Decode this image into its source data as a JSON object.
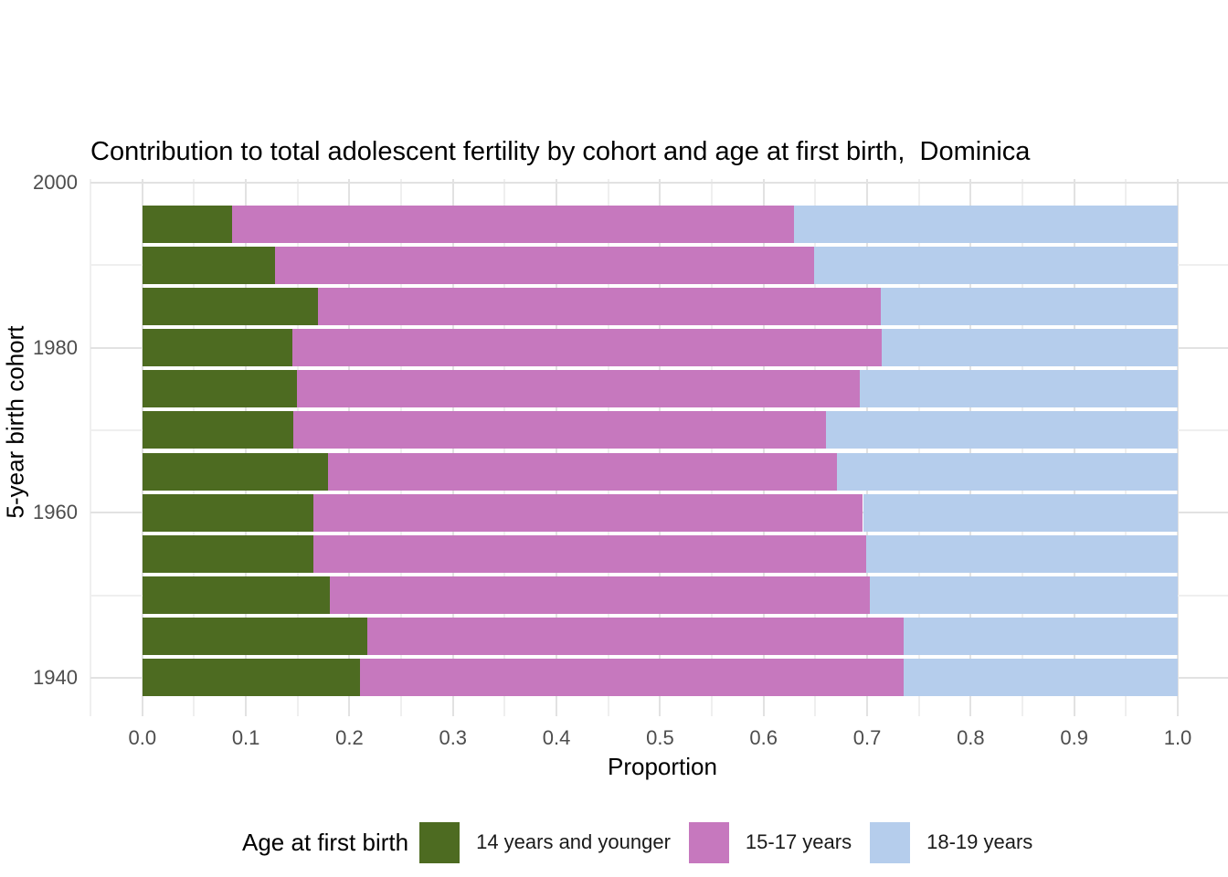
{
  "title": "Contribution to total adolescent fertility by cohort and age at first birth,  Dominica",
  "axes": {
    "x_label": "Proportion",
    "y_label": "5-year birth cohort",
    "x_ticks": [
      "0.0",
      "0.1",
      "0.2",
      "0.3",
      "0.4",
      "0.5",
      "0.6",
      "0.7",
      "0.8",
      "0.9",
      "1.0"
    ],
    "y_ticks": [
      "2000",
      "1980",
      "1960",
      "1940"
    ]
  },
  "legend": {
    "title": "Age at first birth",
    "items": [
      {
        "label": "14 years and younger",
        "color": "#4d6b21"
      },
      {
        "label": "15-17 years",
        "color": "#c678be"
      },
      {
        "label": "18-19 years",
        "color": "#b5cdec"
      }
    ]
  },
  "colors": {
    "background": "#ffffff",
    "grid_major": "#e2e2e2",
    "grid_minor": "#efefef",
    "axis_text": "#4d4d4d",
    "green": "#4d6b21",
    "pink": "#c678be",
    "blue": "#b5cdec"
  },
  "chart_data": {
    "type": "bar",
    "orientation": "horizontal",
    "stacked": true,
    "title": "Contribution to total adolescent fertility by cohort and age at first birth,  Dominica",
    "xlabel": "Proportion",
    "ylabel": "5-year birth cohort",
    "xlim": [
      0.0,
      1.0
    ],
    "x_tick_values": [
      0.0,
      0.1,
      0.2,
      0.3,
      0.4,
      0.5,
      0.6,
      0.7,
      0.8,
      0.9,
      1.0
    ],
    "y_tick_values": [
      2000,
      1980,
      1960,
      1940
    ],
    "grid": "on",
    "legend_title": "Age at first birth",
    "legend_position": "bottom",
    "categories": [
      1995,
      1990,
      1985,
      1980,
      1975,
      1970,
      1965,
      1960,
      1955,
      1950,
      1945,
      1940
    ],
    "series": [
      {
        "name": "14 years and younger",
        "color": "#4d6b21",
        "values": [
          0.087,
          0.128,
          0.17,
          0.145,
          0.149,
          0.146,
          0.179,
          0.165,
          0.165,
          0.181,
          0.217,
          0.21
        ]
      },
      {
        "name": "15-17 years",
        "color": "#c678be",
        "values": [
          0.542,
          0.521,
          0.543,
          0.569,
          0.544,
          0.514,
          0.492,
          0.531,
          0.534,
          0.522,
          0.518,
          0.525
        ]
      },
      {
        "name": "18-19 years",
        "color": "#b5cdec",
        "values": [
          0.371,
          0.351,
          0.287,
          0.286,
          0.307,
          0.34,
          0.329,
          0.304,
          0.301,
          0.297,
          0.265,
          0.265
        ]
      }
    ]
  }
}
